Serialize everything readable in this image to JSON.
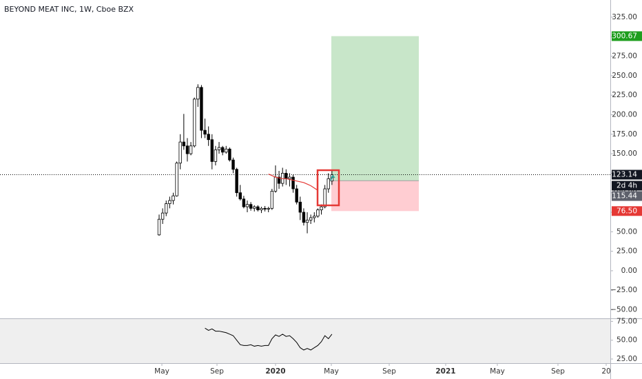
{
  "chart_data": [
    {
      "type": "candlestick",
      "title": "BEYOND MEAT INC, 1W, Cboe BZX",
      "grid": false,
      "ylim": [
        -61,
        347
      ],
      "yticks": [
        {
          "value": -50,
          "label": "−50.00"
        },
        {
          "value": -25,
          "label": "−25.00"
        },
        {
          "value": 0,
          "label": "0.00"
        },
        {
          "value": 25,
          "label": "25.00"
        },
        {
          "value": 50,
          "label": "50.00"
        },
        {
          "value": 75,
          "label": "75.00"
        },
        {
          "value": 100,
          "label": "100.00"
        },
        {
          "value": 125,
          "label": "125.00"
        },
        {
          "value": 150,
          "label": "150.00"
        },
        {
          "value": 175,
          "label": "175.00"
        },
        {
          "value": 200,
          "label": "200.00"
        },
        {
          "value": 225,
          "label": "225.00"
        },
        {
          "value": 250,
          "label": "250.00"
        },
        {
          "value": 275,
          "label": "275.00"
        },
        {
          "value": 300,
          "label": "300.00"
        },
        {
          "value": 325,
          "label": "325.00"
        }
      ],
      "time_labels": [
        "May",
        "Sep",
        "2020",
        "May",
        "Sep",
        "2021",
        "May",
        "Sep",
        "20"
      ],
      "up_color": "#ffffff",
      "down_color": "#000000",
      "open": [
        46,
        66,
        74,
        86,
        90,
        96,
        138,
        165,
        160,
        150,
        160,
        220,
        235,
        180,
        175,
        168,
        140,
        155,
        158,
        152,
        156,
        142,
        130,
        100,
        92,
        82,
        85,
        80,
        82,
        78,
        80,
        79,
        80,
        102,
        120,
        112,
        125,
        118,
        120,
        105,
        88,
        75,
        62,
        65,
        68,
        70,
        78,
        82,
        105,
        115
      ],
      "high": [
        72,
        80,
        90,
        95,
        100,
        140,
        175,
        201,
        170,
        165,
        222,
        239,
        238,
        195,
        185,
        175,
        160,
        165,
        160,
        160,
        158,
        145,
        132,
        110,
        96,
        90,
        88,
        84,
        84,
        82,
        83,
        82,
        105,
        135,
        128,
        132,
        130,
        125,
        123,
        110,
        95,
        80,
        75,
        72,
        75,
        80,
        85,
        110,
        125,
        128
      ],
      "low": [
        45,
        60,
        70,
        80,
        85,
        95,
        130,
        155,
        140,
        148,
        158,
        210,
        170,
        170,
        160,
        130,
        135,
        150,
        148,
        150,
        140,
        125,
        95,
        90,
        80,
        75,
        77,
        76,
        76,
        74,
        76,
        75,
        78,
        100,
        105,
        108,
        110,
        108,
        100,
        85,
        65,
        58,
        48,
        60,
        62,
        68,
        72,
        80,
        100,
        110
      ],
      "close": [
        66,
        74,
        86,
        90,
        96,
        138,
        165,
        160,
        150,
        160,
        220,
        235,
        180,
        175,
        168,
        140,
        155,
        158,
        152,
        156,
        142,
        130,
        100,
        92,
        82,
        85,
        80,
        82,
        78,
        80,
        79,
        80,
        102,
        120,
        112,
        125,
        118,
        120,
        105,
        88,
        75,
        62,
        65,
        68,
        70,
        78,
        82,
        105,
        118,
        123.14
      ],
      "ma": {
        "color": "#e53935",
        "values": [
          null,
          null,
          null,
          null,
          null,
          null,
          null,
          null,
          null,
          null,
          null,
          null,
          null,
          null,
          null,
          null,
          null,
          null,
          null,
          null,
          null,
          null,
          null,
          null,
          null,
          null,
          null,
          null,
          null,
          null,
          null,
          124,
          122,
          120,
          119,
          118,
          118,
          117,
          116,
          115,
          114,
          113,
          111,
          109,
          106,
          103,
          null,
          null,
          null,
          null
        ]
      },
      "current_price": 123.14,
      "countdown": "2d 4h",
      "position": {
        "target": 300.67,
        "entry": 115.44,
        "stop": {
          "value": 76.5,
          "label": "76.50"
        },
        "profit_color": "#c8e6c9",
        "loss_color": "#ffcdd2"
      }
    },
    {
      "type": "line",
      "ylim": [
        19.5,
        79
      ],
      "yticks": [
        {
          "value": 25,
          "label": "25.00"
        },
        {
          "value": 50,
          "label": "50.00"
        },
        {
          "value": 75,
          "label": "75.00"
        }
      ],
      "color": "#000000",
      "values": [
        null,
        null,
        null,
        null,
        null,
        null,
        null,
        null,
        null,
        null,
        null,
        null,
        null,
        66,
        63,
        65,
        62,
        62,
        61,
        60,
        58,
        56,
        50,
        44,
        43,
        43,
        44,
        42,
        43,
        42,
        43,
        43,
        52,
        57,
        55,
        58,
        55,
        56,
        52,
        47,
        40,
        37,
        39,
        37,
        40,
        43,
        48,
        56,
        52,
        58
      ]
    }
  ]
}
